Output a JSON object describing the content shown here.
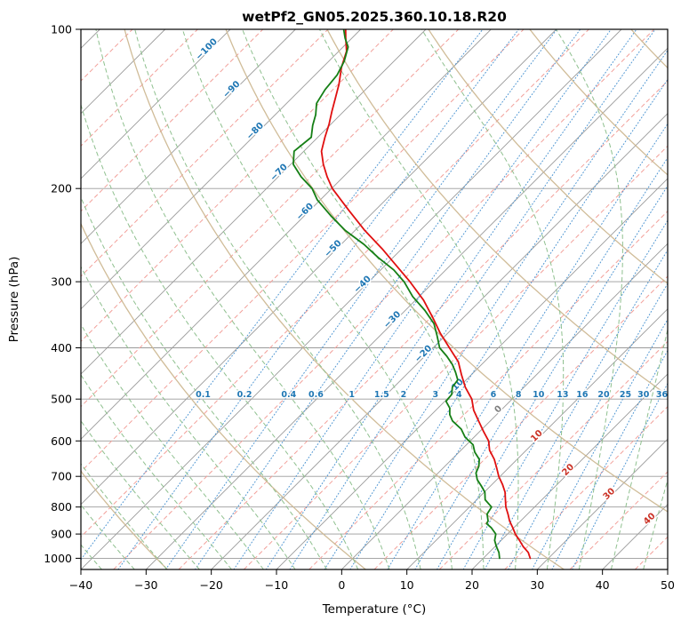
{
  "page": {
    "title": "wetPf2_GN05.2025.360.10.18.R20"
  },
  "chart_data": {
    "type": "skewt-logp",
    "title": "wetPf2_GN05.2025.360.10.18.R20",
    "xlabel": "Temperature (°C)",
    "ylabel": "Pressure (hPa)",
    "xlim": [
      -40,
      50
    ],
    "plim": [
      100,
      1050
    ],
    "skew_deg": 45,
    "grid": {
      "color": "#9a9a9a"
    },
    "x_ticks": [
      -40,
      -30,
      -20,
      -10,
      0,
      10,
      20,
      30,
      40,
      50
    ],
    "y_ticks": [
      100,
      200,
      300,
      400,
      500,
      600,
      700,
      800,
      900,
      1000
    ],
    "isotherms": {
      "start": -160,
      "end": 50,
      "step": 10,
      "color": "#9a9a9a"
    },
    "isopleths_red_dashed": {
      "start": -155,
      "end": 45,
      "step": 10,
      "color": "#f2a09a"
    },
    "dry_adiabats": {
      "theta_K": [
        243,
        273,
        303,
        333,
        363,
        393,
        423,
        453
      ],
      "color": "#cdb892"
    },
    "moist_adiabats": {
      "surface_temps_c": [
        -50,
        -45,
        -40,
        -35,
        -30,
        -25,
        -20,
        -15,
        -10,
        -5,
        0,
        5,
        10,
        15,
        20,
        25,
        30,
        35,
        40,
        45
      ],
      "color": "#8fc08f"
    },
    "mixing_ratio_lines": {
      "values_g_kg": [
        0.1,
        0.2,
        0.4,
        0.6,
        1,
        1.5,
        2,
        3,
        4,
        6,
        8,
        10,
        13,
        16,
        20,
        25,
        30,
        36
      ],
      "color": "#4f96d2",
      "label_color": "#1f77b4",
      "label_pressure_hpa": 490
    },
    "isotherm_labels": [
      {
        "value": -100,
        "pressure_hpa": 110,
        "color": "#1f77b4"
      },
      {
        "value": -90,
        "pressure_hpa": 131,
        "color": "#1f77b4"
      },
      {
        "value": -80,
        "pressure_hpa": 157,
        "color": "#1f77b4"
      },
      {
        "value": -70,
        "pressure_hpa": 188,
        "color": "#1f77b4"
      },
      {
        "value": -60,
        "pressure_hpa": 223,
        "color": "#1f77b4"
      },
      {
        "value": -50,
        "pressure_hpa": 262,
        "color": "#1f77b4"
      },
      {
        "value": -40,
        "pressure_hpa": 306,
        "color": "#1f77b4"
      },
      {
        "value": -30,
        "pressure_hpa": 357,
        "color": "#1f77b4"
      },
      {
        "value": -20,
        "pressure_hpa": 414,
        "color": "#1f77b4"
      },
      {
        "value": -10,
        "pressure_hpa": 479,
        "color": "#1f77b4"
      },
      {
        "value": 0,
        "pressure_hpa": 527,
        "color": "#808080"
      },
      {
        "value": 10,
        "pressure_hpa": 592,
        "color": "#cb3327"
      },
      {
        "value": 20,
        "pressure_hpa": 686,
        "color": "#cb3327"
      },
      {
        "value": 30,
        "pressure_hpa": 762,
        "color": "#cb3327"
      },
      {
        "value": 40,
        "pressure_hpa": 849,
        "color": "#cb3327"
      }
    ],
    "temperature_profile": {
      "name": "temperature",
      "color": "#e01010",
      "points_p_t": [
        [
          1000,
          27.2
        ],
        [
          975,
          26.0
        ],
        [
          950,
          24.3
        ],
        [
          925,
          22.8
        ],
        [
          900,
          21.2
        ],
        [
          875,
          19.8
        ],
        [
          850,
          18.3
        ],
        [
          825,
          17.0
        ],
        [
          800,
          15.6
        ],
        [
          775,
          14.4
        ],
        [
          750,
          13.2
        ],
        [
          725,
          11.6
        ],
        [
          700,
          9.8
        ],
        [
          675,
          8.2
        ],
        [
          650,
          6.5
        ],
        [
          625,
          4.4
        ],
        [
          600,
          2.8
        ],
        [
          575,
          0.5
        ],
        [
          550,
          -1.8
        ],
        [
          525,
          -4.2
        ],
        [
          500,
          -6.2
        ],
        [
          475,
          -9.0
        ],
        [
          450,
          -11.5
        ],
        [
          425,
          -14.0
        ],
        [
          400,
          -17.5
        ],
        [
          375,
          -21.2
        ],
        [
          350,
          -24.8
        ],
        [
          325,
          -28.8
        ],
        [
          300,
          -33.7
        ],
        [
          280,
          -38.2
        ],
        [
          260,
          -43.0
        ],
        [
          240,
          -48.5
        ],
        [
          220,
          -54.0
        ],
        [
          200,
          -59.9
        ],
        [
          190,
          -62.5
        ],
        [
          180,
          -65.0
        ],
        [
          170,
          -67.3
        ],
        [
          160,
          -68.9
        ],
        [
          151,
          -70.3
        ],
        [
          143,
          -71.8
        ],
        [
          135,
          -73.3
        ],
        [
          127,
          -74.9
        ],
        [
          118,
          -77.1
        ],
        [
          110,
          -78.8
        ],
        [
          104,
          -80.9
        ],
        [
          100,
          -82.3
        ]
      ]
    },
    "dewpoint_profile": {
      "name": "dewpoint",
      "color": "#157f15",
      "points_p_t": [
        [
          1000,
          22.5
        ],
        [
          975,
          21.5
        ],
        [
          950,
          20.2
        ],
        [
          925,
          19.0
        ],
        [
          900,
          18.2
        ],
        [
          875,
          16.5
        ],
        [
          860,
          15.2
        ],
        [
          850,
          15.0
        ],
        [
          825,
          13.8
        ],
        [
          800,
          13.4
        ],
        [
          775,
          11.3
        ],
        [
          750,
          10.1
        ],
        [
          730,
          8.6
        ],
        [
          710,
          7.0
        ],
        [
          690,
          5.8
        ],
        [
          670,
          5.2
        ],
        [
          650,
          4.2
        ],
        [
          630,
          2.4
        ],
        [
          610,
          1.0
        ],
        [
          590,
          -1.4
        ],
        [
          570,
          -3.2
        ],
        [
          550,
          -5.8
        ],
        [
          535,
          -7.2
        ],
        [
          520,
          -8.2
        ],
        [
          505,
          -9.8
        ],
        [
          490,
          -10.0
        ],
        [
          475,
          -11.0
        ],
        [
          460,
          -11.3
        ],
        [
          445,
          -12.8
        ],
        [
          430,
          -14.5
        ],
        [
          415,
          -16.6
        ],
        [
          400,
          -19.0
        ],
        [
          380,
          -21.2
        ],
        [
          360,
          -23.6
        ],
        [
          340,
          -27.0
        ],
        [
          320,
          -31.0
        ],
        [
          300,
          -34.6
        ],
        [
          285,
          -38.0
        ],
        [
          270,
          -42.3
        ],
        [
          255,
          -46.5
        ],
        [
          240,
          -51.5
        ],
        [
          225,
          -56.0
        ],
        [
          210,
          -60.5
        ],
        [
          200,
          -63.0
        ],
        [
          190,
          -66.5
        ],
        [
          180,
          -69.6
        ],
        [
          170,
          -71.5
        ],
        [
          160,
          -71.0
        ],
        [
          152,
          -72.6
        ],
        [
          145,
          -73.8
        ],
        [
          138,
          -75.4
        ],
        [
          130,
          -76.2
        ],
        [
          122,
          -76.6
        ],
        [
          115,
          -77.6
        ],
        [
          108,
          -79.2
        ],
        [
          104,
          -81.0
        ],
        [
          100,
          -82.6
        ]
      ]
    }
  }
}
